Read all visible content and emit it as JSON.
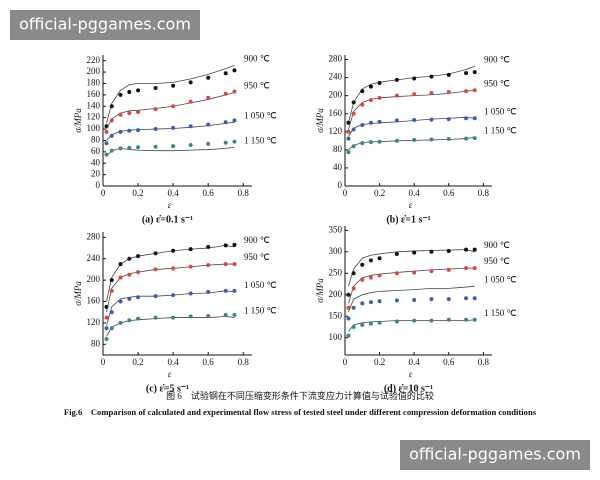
{
  "chart_data": [
    {
      "type": "line",
      "title": "(a) ε̇=0.1 s⁻¹",
      "xlabel": "ε",
      "ylabel": "σ/MPa",
      "x": [
        0.02,
        0.05,
        0.1,
        0.15,
        0.2,
        0.3,
        0.4,
        0.5,
        0.6,
        0.7,
        0.75
      ],
      "xlim": [
        0,
        0.85
      ],
      "xticks": [
        0,
        0.2,
        0.4,
        0.6,
        0.8
      ],
      "ylim": [
        0,
        230
      ],
      "yticks": [
        0,
        20,
        40,
        60,
        80,
        100,
        120,
        140,
        160,
        180,
        200,
        220
      ],
      "calc_color": "#444444",
      "series": [
        {
          "name": "900 ℃",
          "color": "#111111",
          "values": [
            105,
            140,
            160,
            165,
            168,
            172,
            176,
            182,
            190,
            198,
            203
          ],
          "calculated": [
            110,
            145,
            168,
            178,
            180,
            180,
            182,
            188,
            196,
            206,
            212
          ]
        },
        {
          "name": "950 ℃",
          "color": "#e0453a",
          "values": [
            95,
            115,
            125,
            128,
            130,
            135,
            140,
            148,
            155,
            162,
            166
          ],
          "calculated": [
            100,
            118,
            128,
            132,
            133,
            136,
            140,
            146,
            152,
            160,
            164
          ]
        },
        {
          "name": "1 050 ℃",
          "color": "#3a5fb0",
          "values": [
            75,
            88,
            95,
            97,
            98,
            100,
            102,
            105,
            108,
            112,
            115
          ],
          "calculated": [
            80,
            90,
            96,
            98,
            99,
            100,
            101,
            103,
            106,
            110,
            112
          ]
        },
        {
          "name": "1 150 ℃",
          "color": "#3a8a7a",
          "values": [
            55,
            62,
            66,
            67,
            68,
            69,
            70,
            72,
            74,
            76,
            78
          ],
          "calculated": [
            52,
            62,
            66,
            64,
            63,
            62,
            62,
            63,
            64,
            66,
            68
          ]
        }
      ]
    },
    {
      "type": "line",
      "title": "(b) ε̇=1 s⁻¹",
      "xlabel": "ε",
      "ylabel": "σ/MPa",
      "x": [
        0.02,
        0.05,
        0.1,
        0.15,
        0.2,
        0.3,
        0.4,
        0.5,
        0.6,
        0.7,
        0.75
      ],
      "xlim": [
        0,
        0.85
      ],
      "xticks": [
        0,
        0.2,
        0.4,
        0.6,
        0.8
      ],
      "ylim": [
        0,
        290
      ],
      "yticks": [
        0,
        40,
        80,
        120,
        160,
        200,
        240,
        280
      ],
      "calc_color": "#444444",
      "series": [
        {
          "name": "900 ℃",
          "color": "#111111",
          "values": [
            140,
            185,
            210,
            220,
            228,
            235,
            238,
            242,
            246,
            250,
            252
          ],
          "calculated": [
            140,
            185,
            215,
            225,
            230,
            235,
            240,
            243,
            248,
            258,
            265
          ]
        },
        {
          "name": "950 ℃",
          "color": "#e0453a",
          "values": [
            120,
            160,
            180,
            190,
            195,
            200,
            203,
            206,
            208,
            210,
            212
          ],
          "calculated": [
            125,
            165,
            185,
            192,
            195,
            198,
            200,
            202,
            205,
            210,
            212
          ]
        },
        {
          "name": "1 050 ℃",
          "color": "#3a5fb0",
          "values": [
            105,
            125,
            135,
            140,
            142,
            145,
            146,
            147,
            148,
            150,
            150
          ],
          "calculated": [
            110,
            128,
            136,
            138,
            140,
            142,
            145,
            148,
            150,
            152,
            150
          ]
        },
        {
          "name": "1 150 ℃",
          "color": "#3a8a7a",
          "values": [
            75,
            88,
            95,
            97,
            98,
            100,
            102,
            103,
            104,
            105,
            106
          ],
          "calculated": [
            80,
            90,
            96,
            98,
            98,
            100,
            101,
            102,
            103,
            105,
            108
          ]
        }
      ]
    },
    {
      "type": "line",
      "title": "(c) ε̇=5 s⁻¹",
      "xlabel": "ε",
      "ylabel": "σ/MPa",
      "x": [
        0.02,
        0.05,
        0.1,
        0.15,
        0.2,
        0.3,
        0.4,
        0.5,
        0.6,
        0.7,
        0.75
      ],
      "xlim": [
        0,
        0.85
      ],
      "xticks": [
        0,
        0.2,
        0.4,
        0.6,
        0.8
      ],
      "ylim": [
        60,
        290
      ],
      "yticks": [
        80,
        120,
        160,
        200,
        240,
        280
      ],
      "calc_color": "#444444",
      "series": [
        {
          "name": "900 ℃",
          "color": "#111111",
          "values": [
            150,
            200,
            230,
            240,
            245,
            250,
            255,
            258,
            262,
            265,
            266
          ],
          "calculated": [
            160,
            205,
            230,
            240,
            245,
            250,
            255,
            258,
            260,
            265,
            262
          ]
        },
        {
          "name": "950 ℃",
          "color": "#e0453a",
          "values": [
            130,
            180,
            205,
            210,
            215,
            220,
            222,
            225,
            228,
            230,
            230
          ],
          "calculated": [
            140,
            185,
            205,
            212,
            215,
            220,
            222,
            225,
            228,
            230,
            230
          ]
        },
        {
          "name": "1 050 ℃",
          "color": "#3a5fb0",
          "values": [
            110,
            140,
            160,
            165,
            168,
            170,
            172,
            175,
            178,
            180,
            180
          ],
          "calculated": [
            115,
            150,
            165,
            168,
            170,
            170,
            172,
            175,
            176,
            180,
            178
          ]
        },
        {
          "name": "1 150 ℃",
          "color": "#3a8a7a",
          "values": [
            90,
            110,
            120,
            125,
            128,
            130,
            130,
            132,
            133,
            135,
            135
          ],
          "calculated": [
            95,
            112,
            120,
            124,
            126,
            128,
            130,
            130,
            130,
            132,
            130
          ]
        }
      ]
    },
    {
      "type": "line",
      "title": "(d) ε̇=10 s⁻¹",
      "xlabel": "ε",
      "ylabel": "σ/MPa",
      "x": [
        0.02,
        0.05,
        0.1,
        0.15,
        0.2,
        0.3,
        0.4,
        0.5,
        0.6,
        0.7,
        0.75
      ],
      "xlim": [
        0,
        0.85
      ],
      "xticks": [
        0,
        0.2,
        0.4,
        0.6,
        0.8
      ],
      "ylim": [
        60,
        360
      ],
      "yticks": [
        100,
        150,
        200,
        250,
        300,
        350
      ],
      "calc_color": "#444444",
      "series": [
        {
          "name": "900 ℃",
          "color": "#111111",
          "values": [
            200,
            250,
            270,
            280,
            285,
            295,
            298,
            300,
            302,
            305,
            305
          ],
          "calculated": [
            220,
            260,
            285,
            292,
            295,
            300,
            302,
            303,
            304,
            305,
            300
          ]
        },
        {
          "name": "950 ℃",
          "color": "#e0453a",
          "values": [
            170,
            215,
            235,
            240,
            245,
            250,
            252,
            255,
            258,
            262,
            262
          ],
          "calculated": [
            180,
            220,
            240,
            245,
            248,
            252,
            255,
            258,
            260,
            262,
            262
          ]
        },
        {
          "name": "1 050 ℃",
          "color": "#3a5fb0",
          "values": [
            145,
            170,
            180,
            183,
            185,
            187,
            188,
            190,
            190,
            192,
            192
          ],
          "calculated": [
            160,
            190,
            200,
            205,
            208,
            210,
            212,
            215,
            215,
            218,
            220
          ]
        },
        {
          "name": "1 150 ℃",
          "color": "#3a8a7a",
          "values": [
            105,
            125,
            130,
            133,
            135,
            138,
            140,
            140,
            142,
            142,
            142
          ],
          "calculated": [
            115,
            130,
            135,
            137,
            138,
            140,
            140,
            140,
            140,
            140,
            142
          ]
        }
      ]
    }
  ],
  "figure": {
    "caption_cn": "图 6　试验钢在不同压缩变形条件下流变应力计算值与试验值的比较",
    "caption_en": "Fig.6　Comparison of calculated and experimental flow stress of tested steel under different compression deformation conditions"
  },
  "watermarks": [
    "official-pggames.com",
    "official-pggames.com"
  ]
}
